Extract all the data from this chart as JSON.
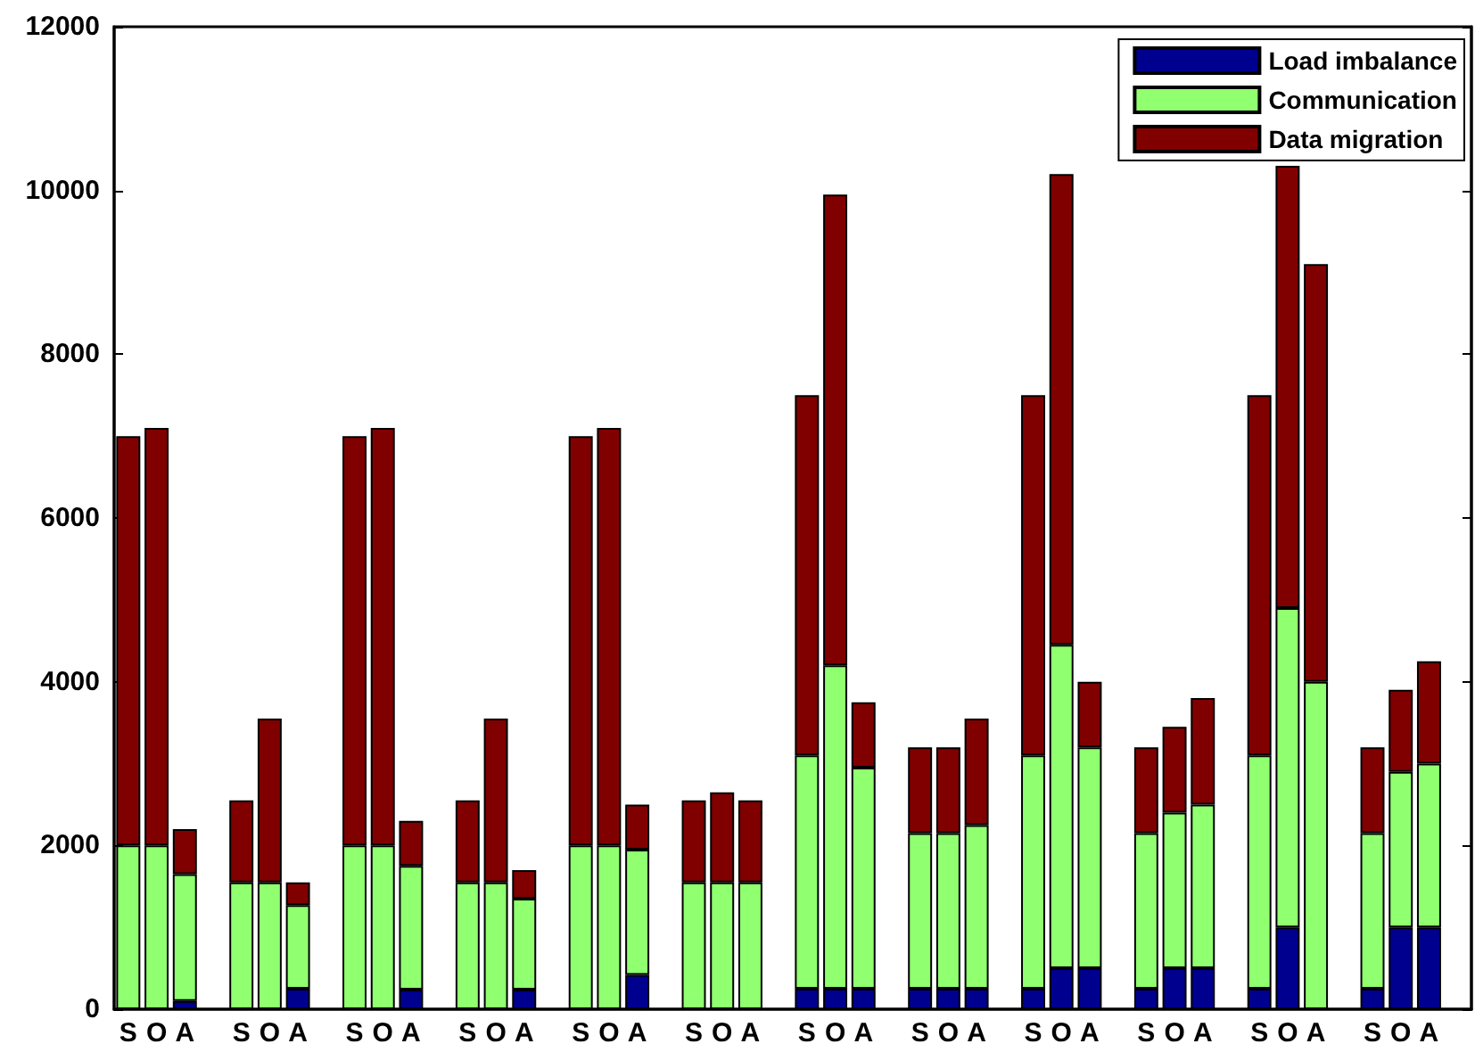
{
  "chart_data": {
    "type": "bar",
    "stacked": true,
    "categories": [
      "S",
      "O",
      "A",
      null,
      "S",
      "O",
      "A",
      null,
      "S",
      "O",
      "A",
      null,
      "S",
      "O",
      "A",
      null,
      "S",
      "O",
      "A",
      null,
      "S",
      "O",
      "A",
      null,
      "S",
      "O",
      "A",
      null,
      "S",
      "O",
      "A",
      null,
      "S",
      "O",
      "A",
      null,
      "S",
      "O",
      "A",
      null,
      "S",
      "O",
      "A",
      null,
      "S",
      "O",
      "A",
      null
    ],
    "series": [
      {
        "name": "Load imbalance",
        "color": "#00008f",
        "values": [
          0,
          0,
          100,
          null,
          0,
          0,
          250,
          null,
          0,
          0,
          240,
          null,
          0,
          0,
          240,
          null,
          0,
          0,
          420,
          null,
          0,
          0,
          0,
          null,
          250,
          250,
          250,
          null,
          250,
          250,
          250,
          null,
          250,
          500,
          500,
          null,
          250,
          500,
          500,
          null,
          250,
          1000,
          0,
          null,
          250,
          1000,
          1000,
          null
        ]
      },
      {
        "name": "Communication",
        "color": "#90ff70",
        "values": [
          2000,
          2000,
          1550,
          null,
          1550,
          1550,
          1020,
          null,
          2000,
          2000,
          1510,
          null,
          1550,
          1550,
          1110,
          null,
          2000,
          2000,
          1530,
          null,
          1550,
          1550,
          1550,
          null,
          2850,
          3950,
          2700,
          null,
          1900,
          1900,
          2000,
          null,
          2850,
          3950,
          2700,
          null,
          1900,
          1900,
          2000,
          null,
          2850,
          3900,
          4000,
          null,
          1900,
          1900,
          2000,
          null
        ]
      },
      {
        "name": "Data migration",
        "color": "#800000",
        "values": [
          5000,
          5100,
          550,
          null,
          1000,
          2000,
          280,
          null,
          5000,
          5100,
          550,
          null,
          1000,
          2000,
          350,
          null,
          5000,
          5100,
          550,
          null,
          1000,
          1100,
          1000,
          null,
          4400,
          5750,
          800,
          null,
          1050,
          1050,
          1300,
          null,
          4400,
          5750,
          800,
          null,
          1050,
          1050,
          1300,
          null,
          4400,
          5400,
          5100,
          null,
          1050,
          1000,
          1250,
          null
        ]
      }
    ],
    "ylim": [
      0,
      12000
    ],
    "yticks": [
      0,
      2000,
      4000,
      6000,
      8000,
      10000,
      12000
    ],
    "legend": "top right"
  }
}
